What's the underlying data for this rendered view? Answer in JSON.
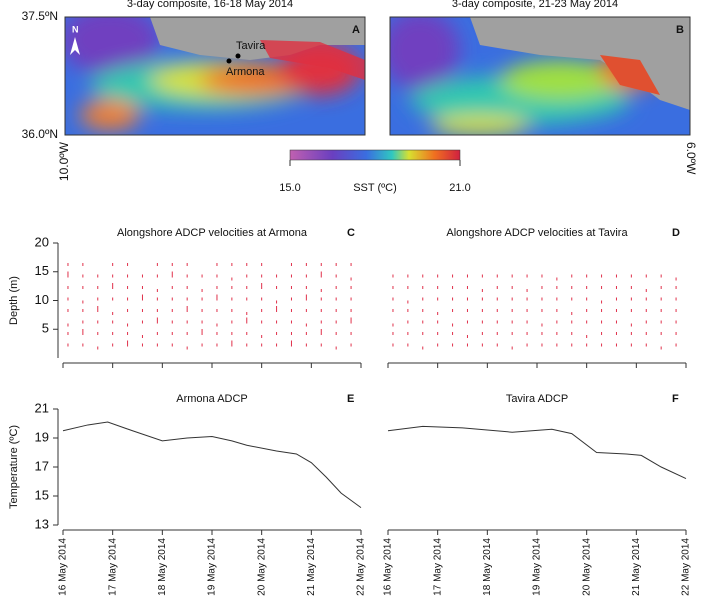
{
  "maps": {
    "panels": [
      {
        "title": "3-day composite, 16-18 May 2014",
        "letter": "A",
        "places": [
          "Tavira",
          "Armona"
        ],
        "north": "N"
      },
      {
        "title": "3-day composite, 21-23 May 2014",
        "letter": "B"
      }
    ],
    "lat_labels": [
      "37.5ºN",
      "36.0ºN"
    ],
    "lon_labels": [
      "10.0ºW",
      "6.0ºW"
    ],
    "colorbar": {
      "label": "SST (ºC)",
      "ticks": [
        {
          "value": 15,
          "label": "15.0"
        },
        {
          "value": 21,
          "label": "21.0"
        }
      ]
    }
  },
  "chart_data": [
    {
      "type": "quiver",
      "title": "Alongshore ADCP velocities at Armona",
      "letter": "C",
      "ylabel": "Depth (m)",
      "color": "#e0304a",
      "xlim": [
        0,
        6
      ],
      "xticks": [
        0,
        1,
        2,
        3,
        4,
        5,
        6
      ],
      "ylim": [
        0,
        20
      ],
      "yticks": [
        5,
        10,
        15,
        20
      ],
      "x": [
        0.1,
        0.4,
        0.7,
        1.0,
        1.3,
        1.6,
        1.9,
        2.2,
        2.5,
        2.8,
        3.1,
        3.4,
        3.7,
        4.0,
        4.3,
        4.6,
        4.9,
        5.2,
        5.5,
        5.8
      ],
      "y": [
        2,
        4,
        6,
        8,
        10,
        12,
        14,
        16
      ],
      "values": [
        [
          0.1,
          0.1,
          -0.1,
          0.1,
          0.1,
          0.1,
          0.2,
          0.1
        ],
        [
          0.1,
          0.2,
          0.1,
          0.1,
          -0.1,
          0.1,
          0.1,
          0.1
        ],
        [
          -0.1,
          0.1,
          0.1,
          0.2,
          0.1,
          0.1,
          0.1,
          null
        ],
        [
          0.1,
          0.1,
          0.1,
          -0.1,
          0.1,
          0.2,
          0.1,
          0.1
        ],
        [
          0.2,
          0.1,
          -0.1,
          0.1,
          0.1,
          0.1,
          0.1,
          0.1
        ],
        [
          0.1,
          -0.1,
          0.1,
          0.1,
          0.2,
          0.1,
          0.1,
          null
        ],
        [
          0.1,
          0.1,
          0.2,
          0.1,
          0.1,
          -0.1,
          0.1,
          0.1
        ],
        [
          0.1,
          0.1,
          0.1,
          0.1,
          0.1,
          0.1,
          0.2,
          0.1
        ],
        [
          -0.1,
          0.1,
          0.1,
          0.2,
          0.1,
          0.1,
          0.1,
          0.1
        ],
        [
          0.1,
          0.2,
          0.1,
          0.1,
          0.1,
          -0.1,
          0.1,
          null
        ],
        [
          0.1,
          0.1,
          -0.1,
          0.1,
          0.2,
          0.1,
          0.1,
          0.1
        ],
        [
          0.2,
          0.1,
          0.1,
          0.1,
          0.1,
          0.1,
          -0.1,
          0.1
        ],
        [
          0.1,
          0.1,
          0.2,
          -0.1,
          0.1,
          0.1,
          0.1,
          0.1
        ],
        [
          0.1,
          -0.1,
          0.1,
          0.1,
          0.1,
          0.2,
          0.1,
          0.1
        ],
        [
          0.1,
          0.1,
          0.1,
          0.2,
          -0.1,
          0.1,
          0.1,
          null
        ],
        [
          0.2,
          0.1,
          0.1,
          0.1,
          0.1,
          0.1,
          0.1,
          0.1
        ],
        [
          0.1,
          0.1,
          -0.1,
          0.1,
          0.2,
          0.1,
          0.1,
          0.1
        ],
        [
          0.1,
          0.2,
          0.1,
          0.1,
          0.1,
          -0.1,
          0.2,
          0.1
        ],
        [
          -0.1,
          0.1,
          0.1,
          0.1,
          0.1,
          0.1,
          0.1,
          0.1
        ],
        [
          0.1,
          0.1,
          0.2,
          0.1,
          0.1,
          0.1,
          -0.1,
          0.1
        ]
      ]
    },
    {
      "type": "quiver",
      "title": "Alongshore ADCP velocities at Tavira",
      "letter": "D",
      "color": "#e0304a",
      "xlim": [
        0,
        6
      ],
      "xticks": [
        0,
        1,
        2,
        3,
        4,
        5,
        6
      ],
      "ylim": [
        0,
        20
      ],
      "x": [
        0.1,
        0.4,
        0.7,
        1.0,
        1.3,
        1.6,
        1.9,
        2.2,
        2.5,
        2.8,
        3.1,
        3.4,
        3.7,
        4.0,
        4.3,
        4.6,
        4.9,
        5.2,
        5.5,
        5.8
      ],
      "y": [
        2,
        4,
        6,
        8,
        10,
        12,
        14,
        16
      ],
      "values": [
        [
          0.1,
          0.1,
          -0.1,
          0.1,
          0.1,
          0.1,
          0.1,
          null
        ],
        [
          0.1,
          0.1,
          0.1,
          0.1,
          -0.1,
          0.1,
          0.1,
          null
        ],
        [
          -0.1,
          0.1,
          0.1,
          0.1,
          0.1,
          0.1,
          0.1,
          null
        ],
        [
          0.1,
          0.1,
          0.1,
          -0.1,
          0.1,
          0.1,
          0.1,
          null
        ],
        [
          0.1,
          0.1,
          -0.1,
          0.1,
          0.1,
          0.1,
          0.1,
          null
        ],
        [
          0.1,
          -0.1,
          0.1,
          0.1,
          0.1,
          0.1,
          0.1,
          null
        ],
        [
          0.1,
          0.1,
          0.1,
          0.1,
          0.1,
          -0.1,
          0.1,
          null
        ],
        [
          0.1,
          0.1,
          0.1,
          0.1,
          0.1,
          0.1,
          0.1,
          null
        ],
        [
          -0.1,
          0.1,
          0.1,
          0.1,
          0.1,
          0.1,
          0.1,
          null
        ],
        [
          0.1,
          0.1,
          0.1,
          0.1,
          0.1,
          -0.1,
          0.1,
          null
        ],
        [
          0.1,
          0.1,
          -0.1,
          0.1,
          0.1,
          0.1,
          0.1,
          null
        ],
        [
          0.1,
          0.1,
          0.1,
          0.1,
          0.1,
          0.1,
          -0.1,
          null
        ],
        [
          0.1,
          0.1,
          0.1,
          -0.1,
          0.1,
          0.1,
          0.1,
          null
        ],
        [
          0.1,
          -0.1,
          0.1,
          0.1,
          0.1,
          0.1,
          0.1,
          null
        ],
        [
          0.1,
          0.1,
          0.1,
          0.1,
          -0.1,
          0.1,
          0.1,
          null
        ],
        [
          0.1,
          0.1,
          0.1,
          0.1,
          0.1,
          0.1,
          0.1,
          null
        ],
        [
          0.1,
          0.1,
          -0.1,
          0.1,
          0.1,
          0.1,
          0.1,
          null
        ],
        [
          0.1,
          0.1,
          0.1,
          0.1,
          0.1,
          -0.1,
          0.1,
          null
        ],
        [
          -0.1,
          0.1,
          0.1,
          0.1,
          0.1,
          0.1,
          0.1,
          null
        ],
        [
          0.1,
          0.1,
          0.1,
          0.1,
          0.1,
          0.1,
          -0.1,
          null
        ]
      ]
    },
    {
      "type": "line",
      "title": "Armona ADCP",
      "letter": "E",
      "ylabel": "Temperature (ºC)",
      "color": "#333333",
      "xlim": [
        0,
        6
      ],
      "xticks": [
        {
          "value": 0,
          "label": "16 May 2014"
        },
        {
          "value": 1,
          "label": "17 May 2014"
        },
        {
          "value": 2,
          "label": "18 May 2014"
        },
        {
          "value": 3,
          "label": "19 May 2014"
        },
        {
          "value": 4,
          "label": "20 May 2014"
        },
        {
          "value": 5,
          "label": "21 May 2014"
        },
        {
          "value": 6,
          "label": "22 May 2014"
        }
      ],
      "ylim": [
        13,
        21
      ],
      "yticks": [
        13,
        15,
        17,
        19,
        21
      ],
      "x": [
        0,
        0.5,
        0.9,
        1.4,
        2.0,
        2.5,
        3.0,
        3.4,
        3.7,
        4.3,
        4.7,
        5.0,
        5.3,
        5.6,
        6.0
      ],
      "values": [
        19.5,
        19.9,
        20.1,
        19.5,
        18.8,
        19.0,
        19.1,
        18.8,
        18.5,
        18.1,
        17.9,
        17.3,
        16.3,
        15.2,
        14.2
      ]
    },
    {
      "type": "line",
      "title": "Tavira ADCP",
      "letter": "F",
      "color": "#333333",
      "xlim": [
        0,
        6
      ],
      "xticks": [
        {
          "value": 0,
          "label": "16 May 2014"
        },
        {
          "value": 1,
          "label": "17 May 2014"
        },
        {
          "value": 2,
          "label": "18 May 2014"
        },
        {
          "value": 3,
          "label": "19 May 2014"
        },
        {
          "value": 4,
          "label": "20 May 2014"
        },
        {
          "value": 5,
          "label": "21 May 2014"
        },
        {
          "value": 6,
          "label": "22 May 2014"
        }
      ],
      "ylim": [
        13,
        21
      ],
      "x": [
        0,
        0.7,
        1.5,
        2.5,
        3.3,
        3.7,
        4.2,
        4.8,
        5.1,
        5.5,
        6.0
      ],
      "values": [
        19.5,
        19.8,
        19.7,
        19.4,
        19.6,
        19.3,
        18.0,
        17.9,
        17.8,
        17.0,
        16.2
      ]
    }
  ]
}
